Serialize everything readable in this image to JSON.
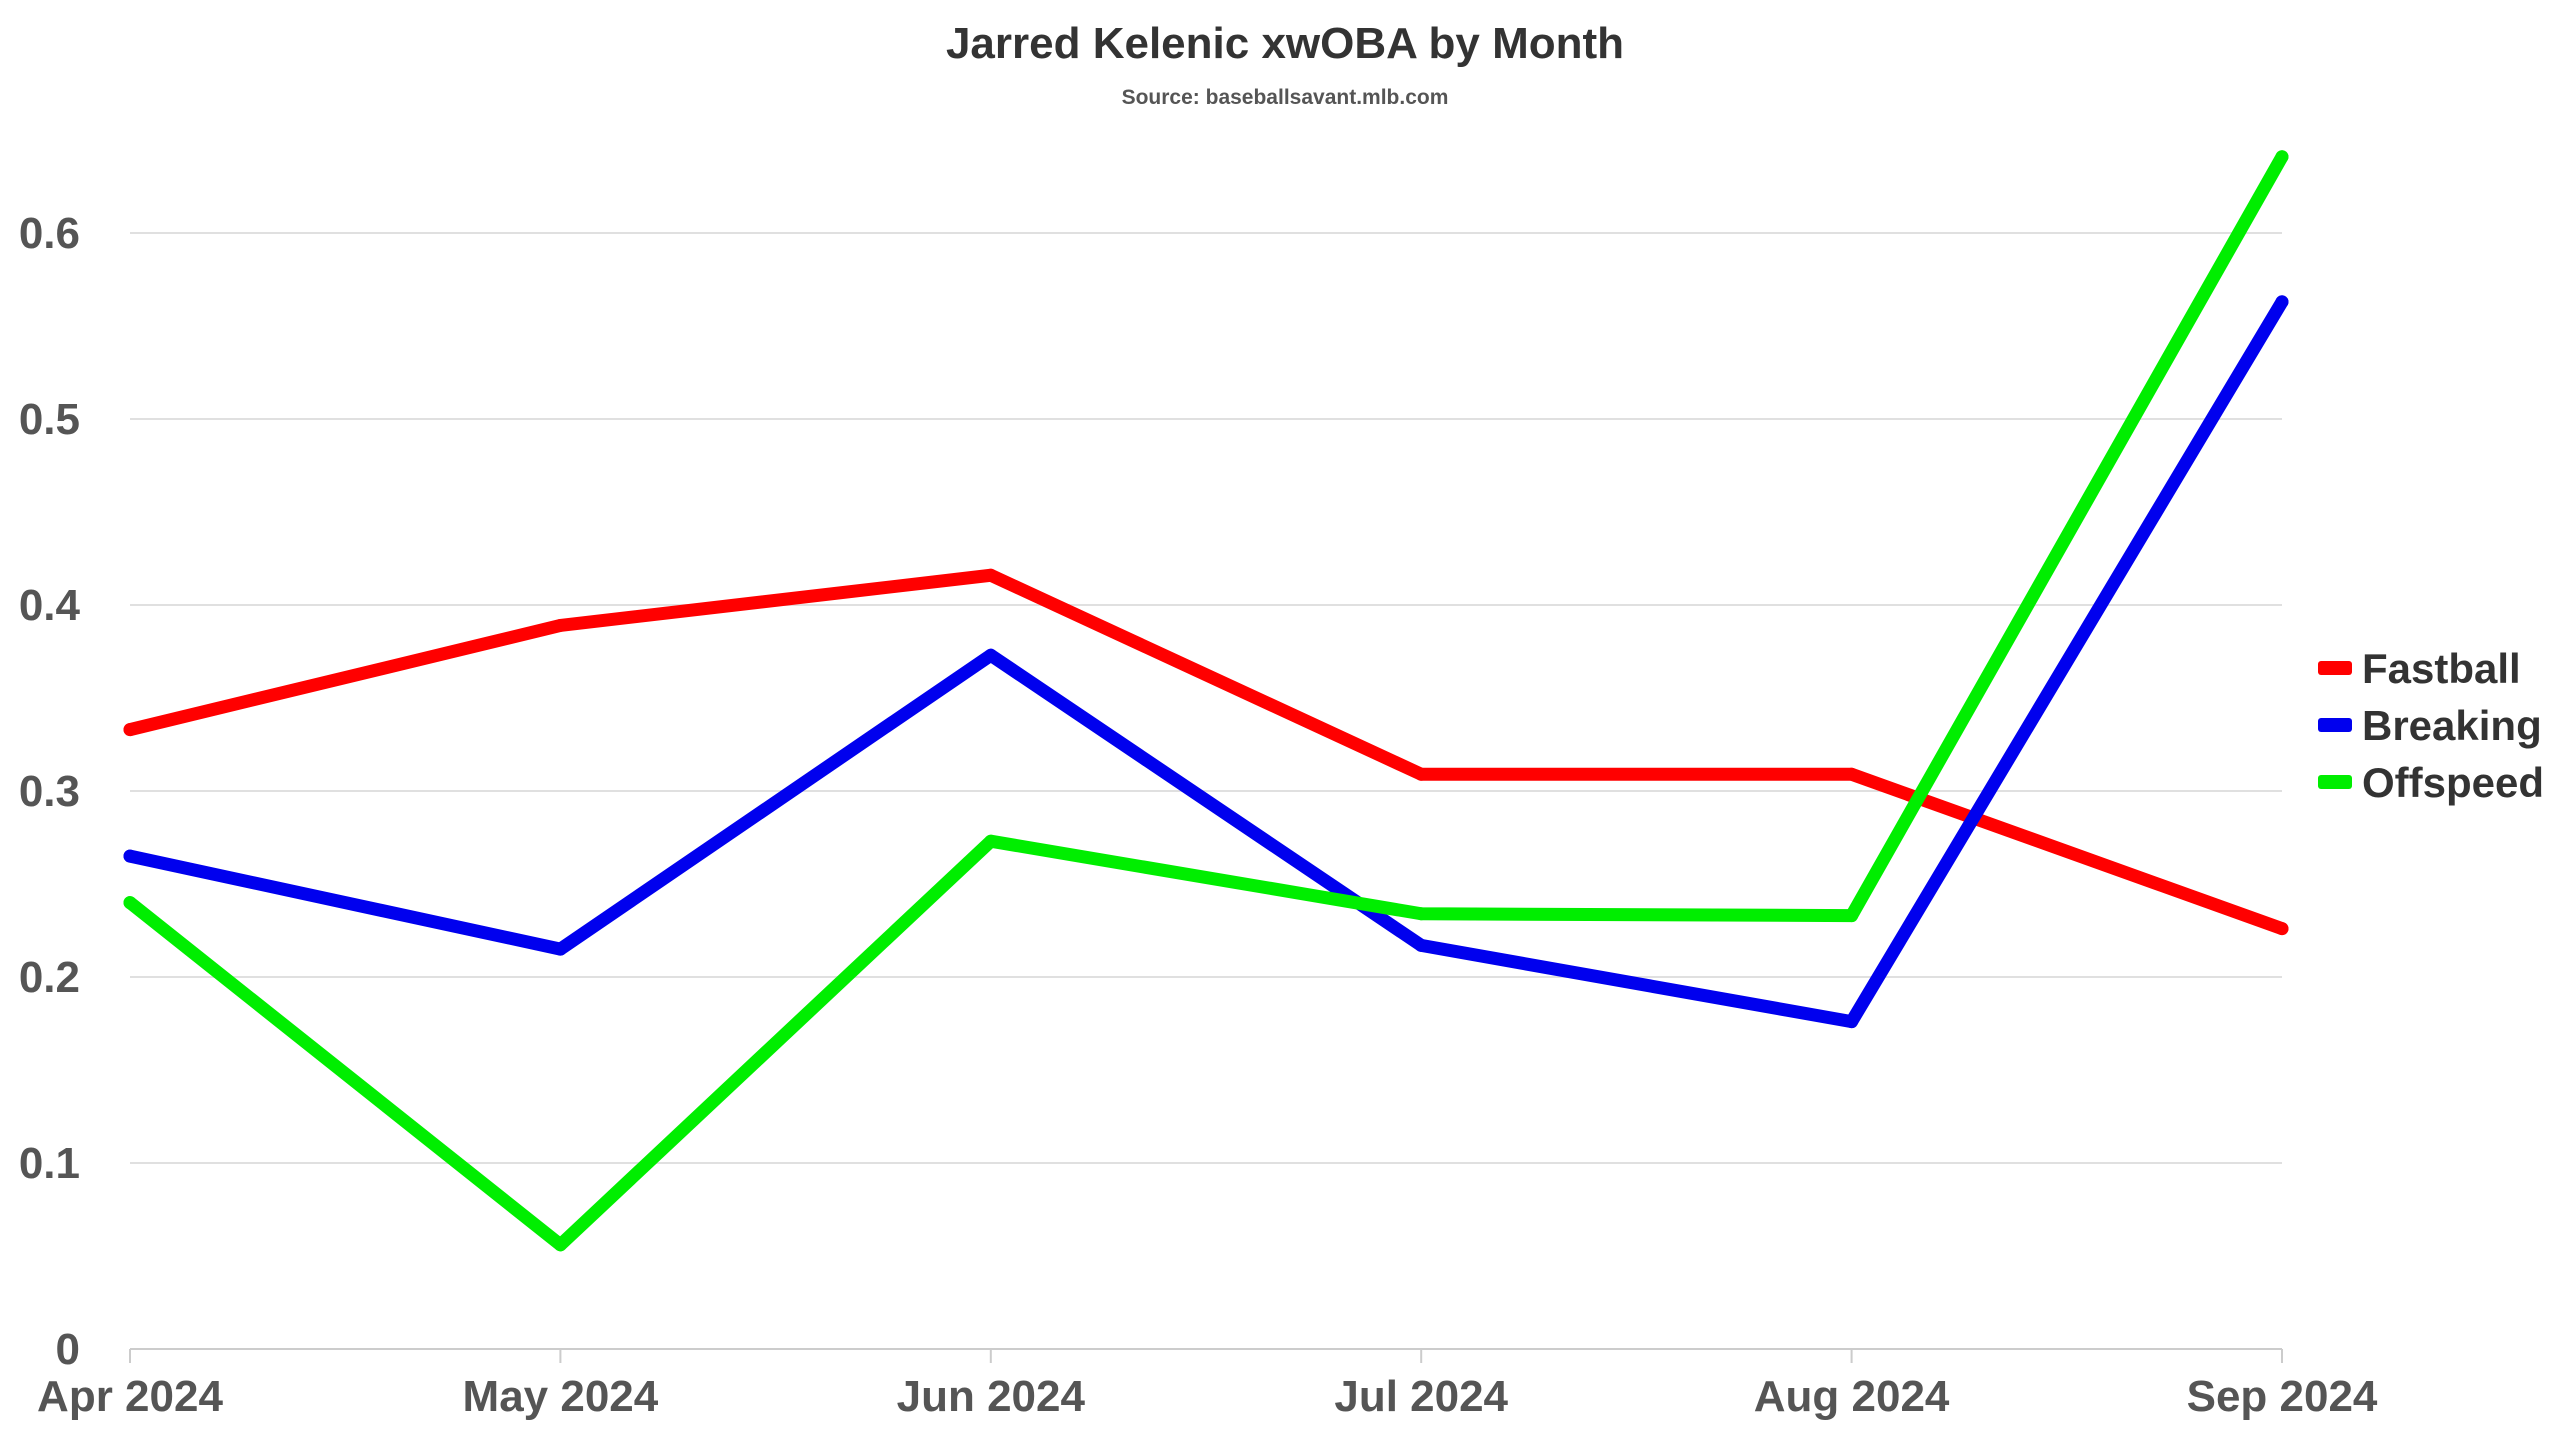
{
  "chart_data": {
    "type": "line",
    "title": "Jarred Kelenic xwOBA by Month",
    "subtitle": "Source: baseballsavant.mlb.com",
    "xlabel": "",
    "ylabel": "",
    "categories": [
      "Apr 2024",
      "May 2024",
      "Jun 2024",
      "Jul 2024",
      "Aug 2024",
      "Sep 2024"
    ],
    "ylim": [
      0,
      0.65
    ],
    "yticks": [
      "0",
      "0.1",
      "0.2",
      "0.3",
      "0.4",
      "0.5",
      "0.6"
    ],
    "grid": true,
    "legend_position": "right",
    "series": [
      {
        "name": "Fastball",
        "color": "#ff0000",
        "values": [
          0.333,
          0.389,
          0.416,
          0.309,
          0.309,
          0.226
        ]
      },
      {
        "name": "Breaking",
        "color": "#0000ee",
        "values": [
          0.265,
          0.215,
          0.373,
          0.217,
          0.176,
          0.563
        ]
      },
      {
        "name": "Offspeed",
        "color": "#00ee00",
        "values": [
          0.24,
          0.056,
          0.273,
          0.234,
          0.233,
          0.641
        ]
      }
    ]
  }
}
